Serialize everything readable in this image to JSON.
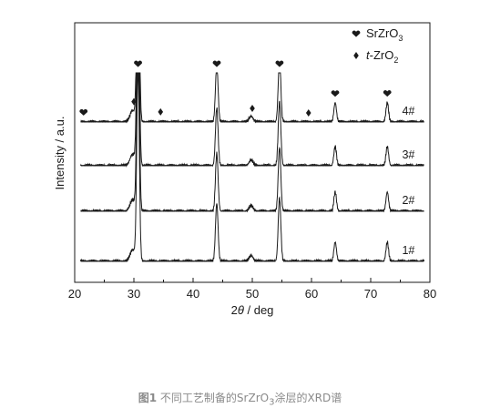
{
  "caption": {
    "label": "图1",
    "text": "不同工艺制备的SrZrO",
    "sub": "3",
    "text_after": "涂层的XRD谱"
  },
  "chart_data": {
    "type": "line",
    "xlabel_prefix": "2",
    "xlabel_theta": "θ",
    "xlabel_suffix": " / deg",
    "ylabel": "Intensity / a.u.",
    "xlim": [
      20,
      80
    ],
    "x_ticks": [
      20,
      30,
      40,
      50,
      60,
      70,
      80
    ],
    "y_ticks_shown": false,
    "legend": {
      "placement": "top-right",
      "entries": [
        {
          "marker": "heart",
          "text": "SrZrO",
          "sub": "3",
          "italic_prefix": ""
        },
        {
          "marker": "diamond",
          "text": "-ZrO",
          "sub": "2",
          "italic_prefix": "t"
        }
      ]
    },
    "peaks": [
      {
        "x": 29.8,
        "height": 0.06,
        "width": 0.45
      },
      {
        "x": 30.7,
        "height": 1.0,
        "width": 0.22
      },
      {
        "x": 44.0,
        "height": 0.3,
        "width": 0.22
      },
      {
        "x": 49.8,
        "height": 0.03,
        "width": 0.35
      },
      {
        "x": 54.6,
        "height": 0.33,
        "width": 0.22
      },
      {
        "x": 64.0,
        "height": 0.1,
        "width": 0.22
      },
      {
        "x": 72.8,
        "height": 0.1,
        "width": 0.22
      }
    ],
    "series": [
      {
        "name": "1#",
        "offset": 0.0
      },
      {
        "name": "2#",
        "offset": 1.0
      },
      {
        "name": "3#",
        "offset": 2.0
      },
      {
        "name": "4#",
        "offset": 3.0
      }
    ],
    "markers_4": [
      {
        "x": 21.5,
        "type": "heart"
      },
      {
        "x": 30.0,
        "type": "diamond"
      },
      {
        "x": 30.7,
        "type": "heart"
      },
      {
        "x": 34.5,
        "type": "diamond"
      },
      {
        "x": 44.0,
        "type": "heart"
      },
      {
        "x": 50.0,
        "type": "diamond"
      },
      {
        "x": 54.6,
        "type": "heart"
      },
      {
        "x": 59.5,
        "type": "diamond"
      },
      {
        "x": 64.0,
        "type": "heart"
      },
      {
        "x": 72.8,
        "type": "heart"
      }
    ],
    "grid": false,
    "line_color": "#1a1a1a"
  }
}
